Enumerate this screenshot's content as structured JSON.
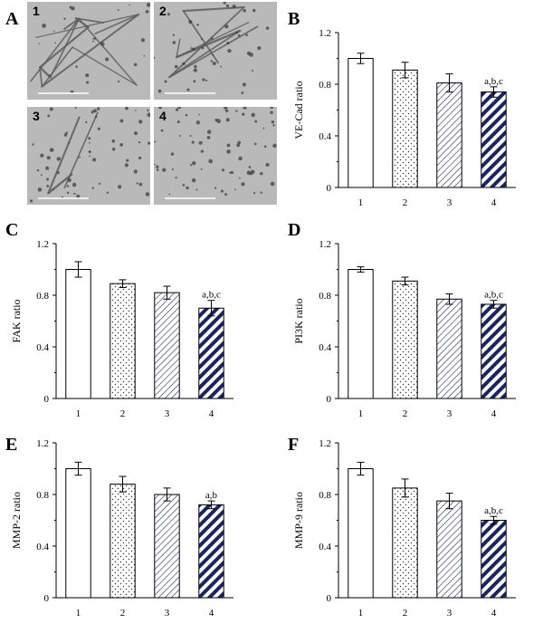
{
  "figure": {
    "panel_letters": [
      "A",
      "B",
      "C",
      "D",
      "E",
      "F"
    ],
    "micrograph_labels": [
      "1",
      "2",
      "3",
      "4"
    ]
  },
  "colors": {
    "bar_outline": "#000000",
    "dots": "#333333",
    "hatch_thin": "#1f2a55",
    "hatch_bold": "#1a2560",
    "micrograph_bg": "#b9b9b9",
    "scale_bar": "#ffffff"
  },
  "chart_data": [
    {
      "panel": "B",
      "type": "bar",
      "categories": [
        "1",
        "2",
        "3",
        "4"
      ],
      "values": [
        1.0,
        0.91,
        0.81,
        0.74
      ],
      "errors": [
        0.04,
        0.06,
        0.07,
        0.04
      ],
      "annotations": [
        "",
        "",
        "",
        "a,b,c"
      ],
      "ylabel": "VE-Cad ratio",
      "ylim": [
        0,
        1.2
      ],
      "yticks": [
        "0",
        "0.4",
        "0.8",
        "1.2"
      ],
      "fills": [
        "white",
        "dots",
        "thin-hatch",
        "bold-hatch"
      ]
    },
    {
      "panel": "C",
      "type": "bar",
      "categories": [
        "1",
        "2",
        "3",
        "4"
      ],
      "values": [
        1.0,
        0.89,
        0.82,
        0.7
      ],
      "errors": [
        0.06,
        0.03,
        0.05,
        0.06
      ],
      "annotations": [
        "",
        "",
        "",
        "a,b,c"
      ],
      "ylabel": "FAK ratio",
      "ylim": [
        0,
        1.2
      ],
      "yticks": [
        "0",
        "0.4",
        "0.8",
        "1.2"
      ],
      "fills": [
        "white",
        "dots",
        "thin-hatch",
        "bold-hatch"
      ]
    },
    {
      "panel": "D",
      "type": "bar",
      "categories": [
        "1",
        "2",
        "3",
        "4"
      ],
      "values": [
        1.0,
        0.91,
        0.77,
        0.73
      ],
      "errors": [
        0.02,
        0.03,
        0.04,
        0.03
      ],
      "annotations": [
        "",
        "",
        "",
        "a,b,c"
      ],
      "ylabel": "PI3K ratio",
      "ylim": [
        0,
        1.2
      ],
      "yticks": [
        "0",
        "0.4",
        "0.8",
        "1.2"
      ],
      "fills": [
        "white",
        "dots",
        "thin-hatch",
        "bold-hatch"
      ]
    },
    {
      "panel": "E",
      "type": "bar",
      "categories": [
        "1",
        "2",
        "3",
        "4"
      ],
      "values": [
        1.0,
        0.88,
        0.8,
        0.72
      ],
      "errors": [
        0.05,
        0.06,
        0.05,
        0.03
      ],
      "annotations": [
        "",
        "",
        "",
        "a,b"
      ],
      "ylabel": "MMP-2 ratio",
      "ylim": [
        0,
        1.2
      ],
      "yticks": [
        "0",
        "0.4",
        "0.8",
        "1.2"
      ],
      "fills": [
        "white",
        "dots",
        "thin-hatch",
        "bold-hatch"
      ]
    },
    {
      "panel": "F",
      "type": "bar",
      "categories": [
        "1",
        "2",
        "3",
        "4"
      ],
      "values": [
        1.0,
        0.85,
        0.75,
        0.6
      ],
      "errors": [
        0.05,
        0.07,
        0.06,
        0.03
      ],
      "annotations": [
        "",
        "",
        "",
        "a,b,c"
      ],
      "ylabel": "MMP-9 ratio",
      "ylim": [
        0,
        1.2
      ],
      "yticks": [
        "0",
        "0.4",
        "0.8",
        "1.2"
      ],
      "fills": [
        "white",
        "dots",
        "thin-hatch",
        "bold-hatch"
      ]
    }
  ]
}
